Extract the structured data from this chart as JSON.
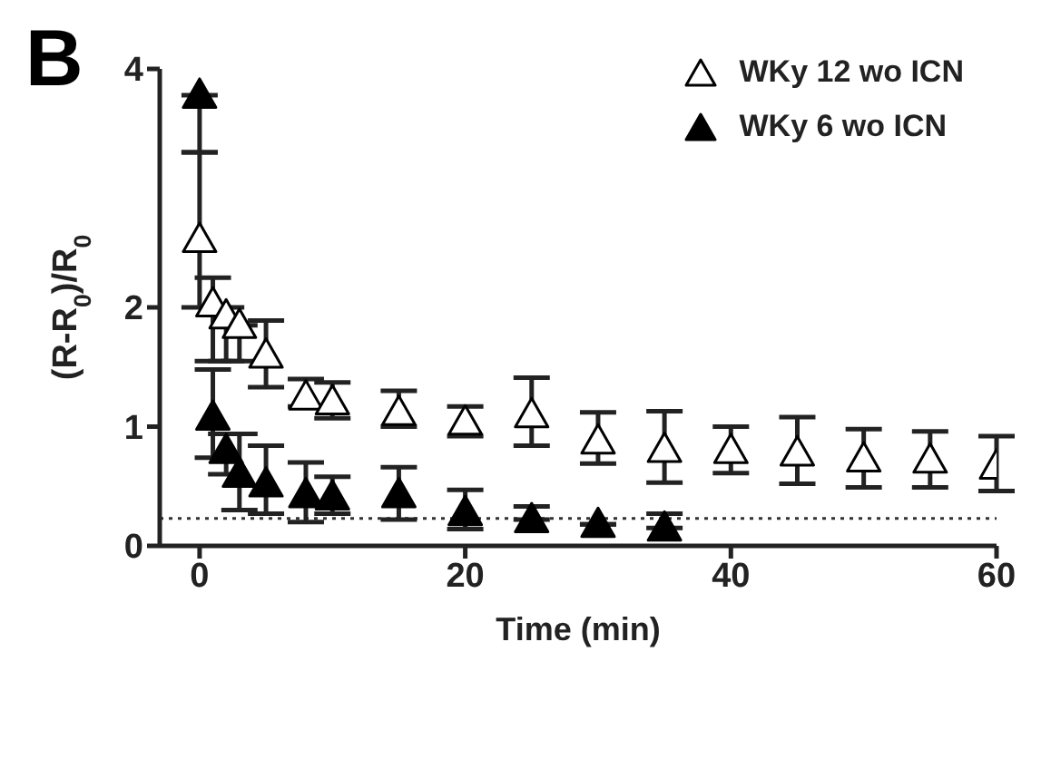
{
  "chart_data": {
    "type": "scatter",
    "title": "B",
    "xlabel": "Time (min)",
    "ylabel": "(R-R$_{0}$)/R$_{0}$",
    "xlim": [
      -3,
      60
    ],
    "xticks": [
      0,
      20,
      40,
      60
    ],
    "ylim": [
      0,
      4
    ],
    "yticks": [
      0,
      1,
      2,
      4
    ],
    "legend": "top right",
    "marker": "triangle",
    "grid": false,
    "ref_lines": [
      {
        "axis": "y",
        "value": 0.23,
        "line_style": "dotted",
        "color": "#333333"
      }
    ],
    "series": [
      {
        "name": "WKy 12 wo ICN",
        "color": "#ffffff",
        "x": [
          0,
          1,
          2,
          3,
          5,
          8,
          10,
          15,
          20,
          25,
          30,
          35,
          40,
          45,
          50,
          55,
          60
        ],
        "values": [
          2.57,
          2.03,
          1.93,
          1.85,
          1.6,
          1.25,
          1.21,
          1.12,
          1.04,
          1.1,
          0.88,
          0.81,
          0.8,
          0.78,
          0.73,
          0.72,
          0.67
        ],
        "errors": [
          [
            2.0,
            3.3
          ],
          [
            1.55,
            2.25
          ],
          [
            1.55,
            2.0
          ],
          [
            1.55,
            1.85
          ],
          [
            1.33,
            1.89
          ],
          [
            1.17,
            1.4
          ],
          [
            1.07,
            1.37
          ],
          [
            1.0,
            1.3
          ],
          [
            0.92,
            1.17
          ],
          [
            0.84,
            1.41
          ],
          [
            0.69,
            1.12
          ],
          [
            0.53,
            1.13
          ],
          [
            0.61,
            1.0
          ],
          [
            0.52,
            1.08
          ],
          [
            0.49,
            0.98
          ],
          [
            0.49,
            0.96
          ],
          [
            0.46,
            0.92
          ]
        ]
      },
      {
        "name": "WKy 6 wo ICN",
        "color": "#000000",
        "x": [
          0,
          1,
          2,
          3,
          5,
          8,
          10,
          15,
          20,
          25,
          30,
          35
        ],
        "values": [
          3.78,
          1.08,
          0.8,
          0.6,
          0.52,
          0.43,
          0.41,
          0.43,
          0.28,
          0.22,
          0.18,
          0.15
        ],
        "errors": [
          [
            3.3,
            3.78
          ],
          [
            0.74,
            1.48
          ],
          [
            0.6,
            0.94
          ],
          [
            0.3,
            0.94
          ],
          [
            0.27,
            0.84
          ],
          [
            0.2,
            0.7
          ],
          [
            0.27,
            0.58
          ],
          [
            0.22,
            0.66
          ],
          [
            0.14,
            0.47
          ],
          [
            0.22,
            0.33
          ],
          null,
          [
            0.15,
            0.27
          ]
        ]
      }
    ]
  }
}
